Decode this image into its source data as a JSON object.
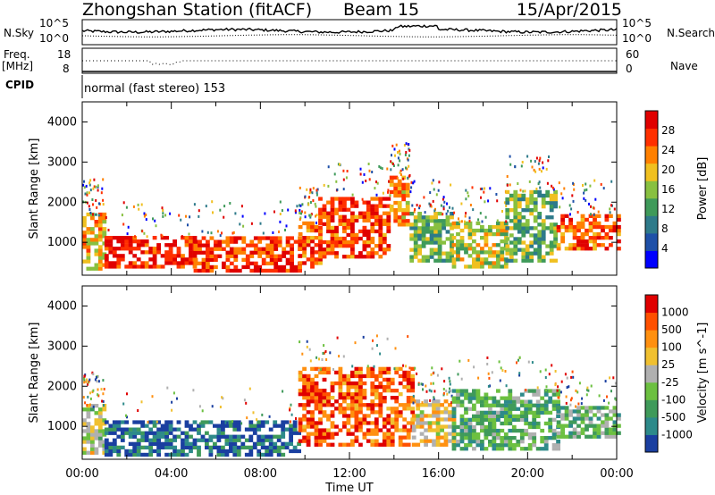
{
  "header": {
    "station": "Zhongshan Station (fitACF)",
    "beam": "Beam 15",
    "date": "15/Apr/2015"
  },
  "labels": {
    "nsky": "N.Sky",
    "nsearch": "N.Search",
    "freq_line1": "Freq.",
    "freq_line2": "[MHz]",
    "nave": "Nave",
    "cpid": "CPID",
    "cpid_value": "normal (fast stereo) 153",
    "noise_tick_top": "10^5",
    "noise_tick_bottom": "10^0",
    "freq_tick_top": "18",
    "freq_tick_bottom": "8",
    "nave_tick_top": "60",
    "nave_tick_bottom": "0"
  },
  "chart_data": [
    {
      "type": "heatmap",
      "panel": "power",
      "ylabel": "Slant Range [km]",
      "ylim": [
        180,
        4500
      ],
      "yticks": [
        "1000",
        "2000",
        "3000",
        "4000"
      ],
      "xlim_hours": [
        0,
        24
      ],
      "colorbar": {
        "label": "Power [dB]",
        "ticks": [
          "4",
          "8",
          "12",
          "16",
          "20",
          "24",
          "28"
        ],
        "range": [
          0,
          32
        ],
        "colors": [
          "#0000ff",
          "#1e50a8",
          "#2e7a8a",
          "#3f9a5a",
          "#88c040",
          "#f0c020",
          "#ff8000",
          "#ff3000",
          "#e00000"
        ]
      },
      "echo_regions": [
        {
          "t": [
            0.0,
            1.0
          ],
          "r": [
            300,
            1700
          ],
          "level": 0.62
        },
        {
          "t": [
            1.0,
            5.0
          ],
          "r": [
            350,
            1150
          ],
          "level": 0.9
        },
        {
          "t": [
            5.0,
            9.7
          ],
          "r": [
            250,
            1150
          ],
          "level": 0.85
        },
        {
          "t": [
            9.7,
            10.6
          ],
          "r": [
            350,
            1500
          ],
          "level": 0.8
        },
        {
          "t": [
            10.6,
            13.8
          ],
          "r": [
            600,
            2100
          ],
          "level": 0.83
        },
        {
          "t": [
            13.8,
            14.7
          ],
          "r": [
            1400,
            2600
          ],
          "level": 0.7
        },
        {
          "t": [
            14.7,
            16.6
          ],
          "r": [
            500,
            1700
          ],
          "level": 0.45
        },
        {
          "t": [
            16.6,
            19.0
          ],
          "r": [
            350,
            1500
          ],
          "level": 0.55
        },
        {
          "t": [
            19.0,
            21.3
          ],
          "r": [
            500,
            2300
          ],
          "level": 0.45
        },
        {
          "t": [
            21.3,
            24.0
          ],
          "r": [
            800,
            1700
          ],
          "level": 0.8
        }
      ]
    },
    {
      "type": "heatmap",
      "panel": "velocity",
      "ylabel": "Slant Range [km]",
      "ylim": [
        180,
        4500
      ],
      "yticks": [
        "1000",
        "2000",
        "3000",
        "4000"
      ],
      "xlim_hours": [
        0,
        24
      ],
      "xticks": [
        "00:00",
        "04:00",
        "08:00",
        "12:00",
        "16:00",
        "20:00",
        "00:00"
      ],
      "xlabel": "Time UT",
      "colorbar": {
        "label": "Velocity [m s^-1]",
        "ticks": [
          "1000",
          "500",
          "100",
          "25",
          "-25",
          "-100",
          "-500",
          "-1000"
        ],
        "colors": [
          "#1a3fa0",
          "#2d8a8a",
          "#3f9a5a",
          "#6cc040",
          "#b0b0b0",
          "#f0c030",
          "#ff9010",
          "#ff5000",
          "#e00000"
        ]
      },
      "echo_regions": [
        {
          "t": [
            0.0,
            1.0
          ],
          "r": [
            300,
            1500
          ],
          "v": 0.5
        },
        {
          "t": [
            1.0,
            9.7
          ],
          "r": [
            250,
            1100
          ],
          "v": 0.12
        },
        {
          "t": [
            9.7,
            14.8
          ],
          "r": [
            500,
            2400
          ],
          "v": 0.82
        },
        {
          "t": [
            14.8,
            16.6
          ],
          "r": [
            500,
            1600
          ],
          "v": 0.6
        },
        {
          "t": [
            16.6,
            21.3
          ],
          "r": [
            400,
            1900
          ],
          "v": 0.32
        },
        {
          "t": [
            21.3,
            24.0
          ],
          "r": [
            700,
            1500
          ],
          "v": 0.35
        }
      ]
    }
  ]
}
